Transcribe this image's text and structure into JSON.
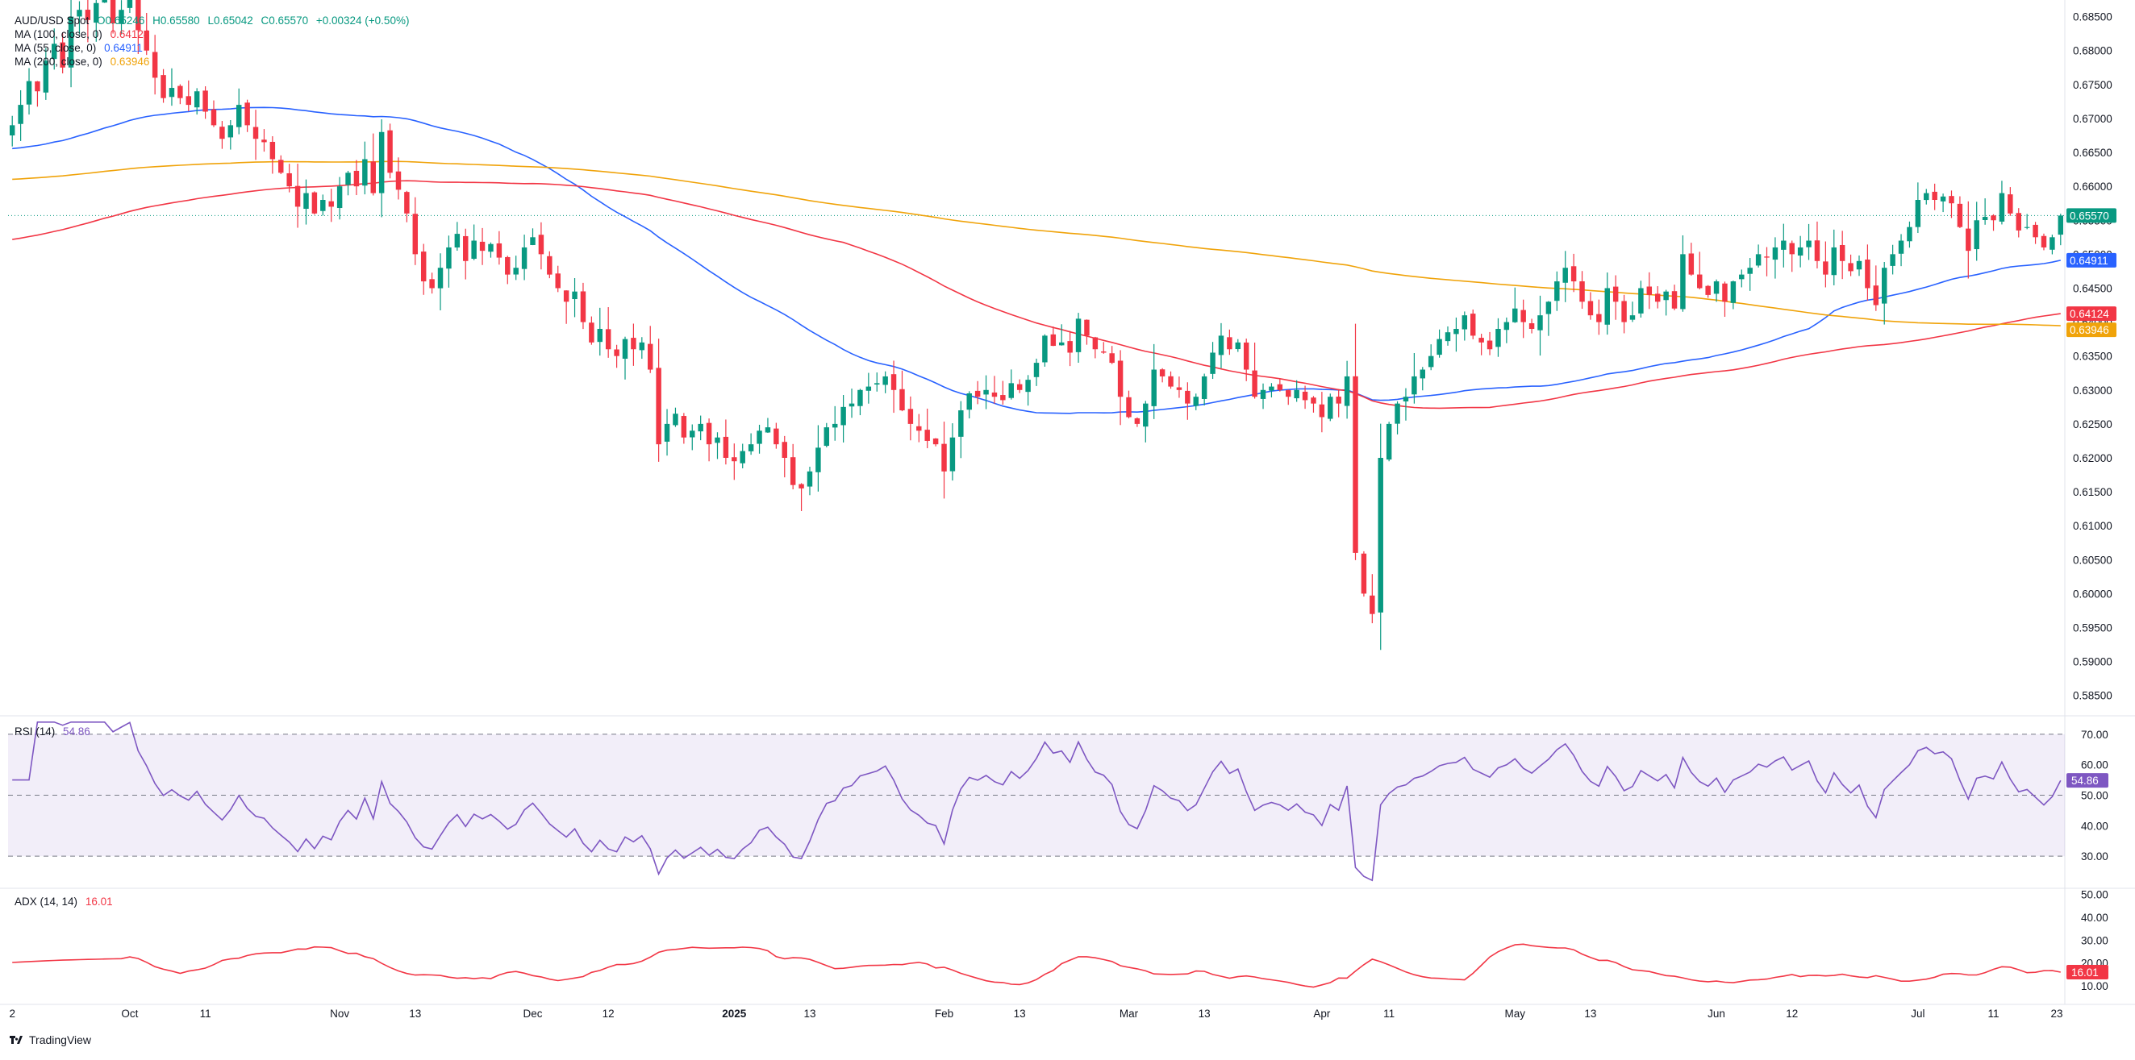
{
  "legend": {
    "symbol": "AUD/USD Spot",
    "open": "O0.65246",
    "high": "H0.65580",
    "low": "L0.65042",
    "close": "C0.65570",
    "change": "+0.00324 (+0.50%)",
    "ma100_label": "MA (100, close, 0)",
    "ma100_value": "0.64124",
    "ma55_label": "MA (55, close, 0)",
    "ma55_value": "0.64911",
    "ma200_label": "MA (200, close, 0)",
    "ma200_value": "0.63946",
    "rsi_label": "RSI (14)",
    "rsi_value": "54.86",
    "adx_label": "ADX (14, 14)",
    "adx_value": "16.01"
  },
  "brand": "TradingView",
  "colors": {
    "up": "#089981",
    "down": "#f23645",
    "ma55": "#2962ff",
    "ma100": "#f23645",
    "ma200": "#f0a30a",
    "rsi": "#7e57c2",
    "adx": "#f23645"
  },
  "chart_data": [
    {
      "type": "candlestick",
      "title": "AUD/USD Spot",
      "ylim": [
        0.582,
        0.6865
      ],
      "y_ticks": [
        "0.68500",
        "0.68000",
        "0.67500",
        "0.67000",
        "0.66500",
        "0.66000",
        "0.65500",
        "0.65000",
        "0.64500",
        "0.64000",
        "0.63500",
        "0.63000",
        "0.62500",
        "0.62000",
        "0.61500",
        "0.61000",
        "0.60500",
        "0.60000",
        "0.59500",
        "0.59000",
        "0.58500"
      ],
      "x_ticks": [
        "2",
        "Oct",
        "11",
        "Nov",
        "13",
        "Dec",
        "12",
        "2025",
        "13",
        "Feb",
        "13",
        "Mar",
        "13",
        "Apr",
        "11",
        "May",
        "13",
        "Jun",
        "12",
        "Jul",
        "11",
        "23"
      ],
      "x_tick_index": [
        0,
        14,
        23,
        39,
        48,
        62,
        71,
        86,
        95,
        111,
        120,
        133,
        142,
        156,
        164,
        179,
        188,
        203,
        212,
        227,
        236,
        245
      ],
      "last_price": "0.65570",
      "bar_count": 245,
      "closes": [
        0.669,
        0.672,
        0.6755,
        0.674,
        0.6785,
        0.681,
        0.6775,
        0.685,
        0.686,
        0.6845,
        0.687,
        0.688,
        0.684,
        0.686,
        0.688,
        0.683,
        0.68,
        0.676,
        0.673,
        0.6745,
        0.673,
        0.672,
        0.674,
        0.671,
        0.669,
        0.667,
        0.669,
        0.672,
        0.669,
        0.667,
        0.6665,
        0.664,
        0.662,
        0.66,
        0.657,
        0.659,
        0.656,
        0.658,
        0.657,
        0.66,
        0.662,
        0.66,
        0.664,
        0.659,
        0.668,
        0.662,
        0.6595,
        0.656,
        0.65,
        0.646,
        0.645,
        0.648,
        0.651,
        0.653,
        0.649,
        0.652,
        0.6505,
        0.6515,
        0.6495,
        0.647,
        0.648,
        0.651,
        0.6525,
        0.65,
        0.647,
        0.645,
        0.643,
        0.6445,
        0.64,
        0.637,
        0.639,
        0.636,
        0.635,
        0.6375,
        0.636,
        0.637,
        0.633,
        0.622,
        0.625,
        0.6265,
        0.623,
        0.624,
        0.625,
        0.622,
        0.623,
        0.62,
        0.6195,
        0.621,
        0.622,
        0.624,
        0.6245,
        0.622,
        0.62,
        0.616,
        0.6155,
        0.618,
        0.6215,
        0.6245,
        0.625,
        0.6275,
        0.628,
        0.63,
        0.6305,
        0.631,
        0.632,
        0.63,
        0.627,
        0.625,
        0.624,
        0.6225,
        0.622,
        0.618,
        0.623,
        0.627,
        0.6295,
        0.629,
        0.63,
        0.629,
        0.6285,
        0.631,
        0.63,
        0.6315,
        0.634,
        0.638,
        0.6365,
        0.637,
        0.6355,
        0.6405,
        0.638,
        0.636,
        0.6355,
        0.634,
        0.629,
        0.626,
        0.625,
        0.628,
        0.633,
        0.632,
        0.6305,
        0.63,
        0.628,
        0.629,
        0.632,
        0.6355,
        0.638,
        0.636,
        0.637,
        0.633,
        0.629,
        0.63,
        0.6305,
        0.63,
        0.629,
        0.63,
        0.6285,
        0.628,
        0.626,
        0.629,
        0.628,
        0.632,
        0.606,
        0.6,
        0.597,
        0.62,
        0.625,
        0.628,
        0.629,
        0.632,
        0.633,
        0.635,
        0.6375,
        0.6385,
        0.639,
        0.641,
        0.638,
        0.637,
        0.636,
        0.639,
        0.64,
        0.642,
        0.64,
        0.639,
        0.641,
        0.643,
        0.646,
        0.648,
        0.646,
        0.643,
        0.641,
        0.64,
        0.645,
        0.643,
        0.64,
        0.641,
        0.645,
        0.644,
        0.643,
        0.6445,
        0.642,
        0.65,
        0.647,
        0.645,
        0.644,
        0.646,
        0.643,
        0.646,
        0.647,
        0.648,
        0.65,
        0.6495,
        0.651,
        0.652,
        0.65,
        0.651,
        0.652,
        0.649,
        0.647,
        0.651,
        0.649,
        0.6475,
        0.649,
        0.645,
        0.6425,
        0.648,
        0.65,
        0.652,
        0.654,
        0.658,
        0.659,
        0.658,
        0.6585,
        0.6575,
        0.654,
        0.6505,
        0.655,
        0.6555,
        0.655,
        0.659,
        0.656,
        0.6535,
        0.654,
        0.6525,
        0.651,
        0.6525,
        0.6557
      ],
      "ma55_last": 0.64911,
      "ma100_last": 0.64124,
      "ma200_last": 0.63946
    },
    {
      "type": "line",
      "title": "RSI (14)",
      "ylim": [
        20,
        75
      ],
      "y_ticks": [
        "70.00",
        "60.00",
        "50.00",
        "40.00",
        "30.00"
      ],
      "band": [
        30,
        70
      ],
      "midline": 50,
      "last_value": "54.86"
    },
    {
      "type": "line",
      "title": "ADX (14, 14)",
      "ylim": [
        4,
        52
      ],
      "y_ticks": [
        "50.00",
        "40.00",
        "30.00",
        "20.00",
        "10.00"
      ],
      "last_value": "16.01"
    }
  ]
}
